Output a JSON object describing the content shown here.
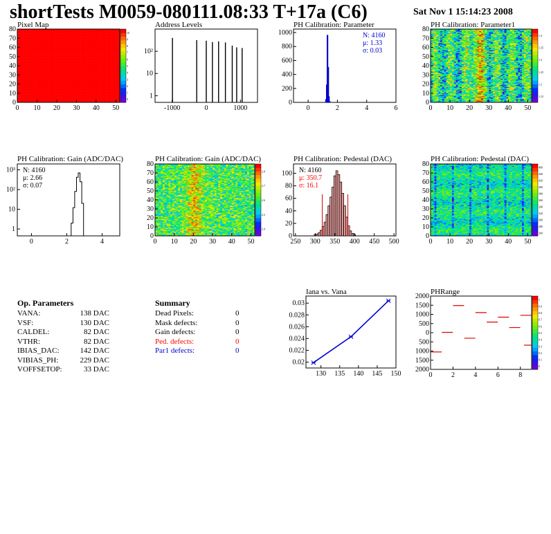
{
  "header": {
    "title": "shortTests M0059-080111.08:33 T+17a (C6)",
    "date": "Sat Nov  1 15:14:23 2008"
  },
  "colors": {
    "red": "#ff0000",
    "blue": "#0000cc",
    "black": "#000000"
  },
  "chart_data": [
    {
      "id": "pixel-map",
      "type": "heatmap",
      "title": "Pixel Map",
      "xticks": [
        "0",
        "10",
        "20",
        "30",
        "40",
        "50"
      ],
      "yticks": [
        "0",
        "10",
        "20",
        "30",
        "40",
        "50",
        "60",
        "70",
        "80"
      ],
      "xlim": [
        0,
        52
      ],
      "ylim": [
        0,
        80
      ],
      "uniform_value": 10,
      "zlim": [
        0,
        10
      ],
      "colorbar_ticks": [
        "0",
        "1",
        "2",
        "3",
        "4",
        "5",
        "6",
        "7",
        "8",
        "9",
        "10"
      ]
    },
    {
      "id": "address-levels",
      "type": "bar",
      "title": "Address Levels",
      "xticks": [
        "-1000",
        "0",
        "1000"
      ],
      "yticks": [
        "1",
        "10",
        "10²"
      ],
      "xlim": [
        -1500,
        1500
      ],
      "log_y": true,
      "peaks_x": [
        -990,
        -280,
        0,
        180,
        360,
        560,
        760,
        890,
        1050
      ],
      "peaks_y": [
        400,
        320,
        300,
        260,
        280,
        250,
        180,
        150,
        140
      ]
    },
    {
      "id": "ph-cal-parameter",
      "type": "bar",
      "title": "PH Calibration: Parameter",
      "xticks": [
        "0",
        "2",
        "4",
        "6"
      ],
      "yticks": [
        "0",
        "200",
        "400",
        "600",
        "800",
        "1000"
      ],
      "xlim": [
        -1,
        6
      ],
      "ylim": [
        0,
        1050
      ],
      "x": [
        1.2,
        1.25,
        1.3,
        1.35,
        1.4,
        1.45
      ],
      "y": [
        40,
        250,
        960,
        500,
        80,
        10
      ],
      "stats": {
        "n": "N: 4160",
        "mu": "μ: 1.33",
        "sigma": "σ: 0.03"
      }
    },
    {
      "id": "ph-cal-parameter1",
      "type": "heatmap",
      "title": "PH Calibration: Parameter1",
      "xticks": [
        "0",
        "10",
        "20",
        "30",
        "40",
        "50"
      ],
      "yticks": [
        "0",
        "10",
        "20",
        "30",
        "40",
        "50",
        "60",
        "70",
        "80"
      ],
      "xlim": [
        0,
        52
      ],
      "ylim": [
        0,
        80
      ],
      "zlim": [
        1.08,
        1.42
      ],
      "colorbar_ticks": [
        "1.15",
        "1.2",
        "1.25",
        "1.3",
        "1.35",
        "1.4"
      ]
    },
    {
      "id": "gain-hist",
      "type": "bar",
      "title": "PH Calibration: Gain (ADC/DAC)",
      "xticks": [
        "0",
        "2",
        "4"
      ],
      "yticks": [
        "1",
        "10",
        "10²",
        "10³"
      ],
      "xlim": [
        -0.8,
        5
      ],
      "log_y": true,
      "x": [
        2.3,
        2.4,
        2.5,
        2.6,
        2.7,
        2.8,
        2.9
      ],
      "y": [
        2,
        12,
        80,
        420,
        700,
        250,
        20
      ],
      "stats": {
        "n": "N: 4160",
        "mu": "μ: 2.66",
        "sigma": "σ: 0.07"
      }
    },
    {
      "id": "gain-map",
      "type": "heatmap",
      "title": "PH Calibration: Gain (ADC/DAC)",
      "xticks": [
        "0",
        "10",
        "20",
        "30",
        "40",
        "50"
      ],
      "yticks": [
        "0",
        "10",
        "20",
        "30",
        "40",
        "50",
        "60",
        "70",
        "80"
      ],
      "xlim": [
        0,
        52
      ],
      "ylim": [
        0,
        80
      ],
      "zlim": [
        2.35,
        2.85
      ],
      "colorbar_ticks": [
        "2.4",
        "2.5",
        "2.6",
        "2.7",
        "2.8"
      ]
    },
    {
      "id": "pedestal-hist",
      "type": "bar",
      "title": "PH Calibration: Pedestal (DAC)",
      "xticks": [
        "250",
        "300",
        "350",
        "400",
        "450",
        "500"
      ],
      "yticks": [
        "0",
        "20",
        "40",
        "60",
        "80",
        "100"
      ],
      "xlim": [
        245,
        505
      ],
      "ylim": [
        0,
        115
      ],
      "x": [
        300,
        305,
        310,
        315,
        320,
        325,
        330,
        335,
        340,
        345,
        350,
        355,
        360,
        365,
        370,
        375,
        380,
        385,
        390,
        395,
        400
      ],
      "y": [
        2,
        3,
        5,
        9,
        15,
        22,
        34,
        48,
        62,
        78,
        96,
        104,
        98,
        86,
        68,
        48,
        30,
        16,
        8,
        4,
        2
      ],
      "stats": {
        "n": "N: 4160",
        "mu": "μ: 350.7",
        "sigma": "σ: 16.1"
      }
    },
    {
      "id": "pedestal-map",
      "type": "heatmap",
      "title": "PH Calibration: Pedestal (DAC)",
      "xticks": [
        "0",
        "10",
        "20",
        "30",
        "40",
        "50"
      ],
      "yticks": [
        "0",
        "10",
        "20",
        "30",
        "40",
        "50",
        "60",
        "70",
        "80"
      ],
      "xlim": [
        0,
        52
      ],
      "ylim": [
        0,
        80
      ],
      "zlim": [
        250,
        470
      ],
      "colorbar_ticks": [
        "260",
        "280",
        "300",
        "320",
        "340",
        "360",
        "380",
        "400",
        "420",
        "440",
        "460"
      ]
    },
    {
      "id": "iana-vana",
      "type": "line",
      "title": "Iana vs. Vana",
      "xticks": [
        "130",
        "135",
        "140",
        "145",
        "150"
      ],
      "yticks": [
        "0.02",
        "0.022",
        "0.024",
        "0.026",
        "0.028",
        "0.03"
      ],
      "xlim": [
        126,
        150
      ],
      "ylim": [
        0.019,
        0.0312
      ],
      "x": [
        128,
        138,
        148
      ],
      "y": [
        0.0199,
        0.0243,
        0.0304
      ]
    },
    {
      "id": "ph-range",
      "type": "scatter",
      "title": "PHRange",
      "xticks": [
        "0",
        "2",
        "4",
        "6",
        "8"
      ],
      "yticks": [
        "-2000",
        "-1500",
        "-1000",
        "-500",
        "0",
        "500",
        "1000",
        "1500",
        "2000"
      ],
      "ytick_labels_shown": [
        "2000",
        "1500",
        "1000",
        "500",
        "0",
        "500",
        "1000",
        "1500",
        "2000"
      ],
      "xlim": [
        0,
        9
      ],
      "ylim": [
        -2000,
        2000
      ],
      "x": [
        0,
        1,
        2,
        3,
        4,
        5,
        6,
        7,
        8
      ],
      "y": [
        -1050,
        20,
        1480,
        -300,
        1100,
        580,
        850,
        280,
        950
      ],
      "extra": [
        {
          "x": 8.5,
          "y": -680
        }
      ],
      "colorbar_ticks": [
        "0",
        "0.1",
        "0.2",
        "0.3",
        "0.4",
        "0.5",
        "0.6",
        "0.7",
        "0.8",
        "0.9",
        "1"
      ]
    }
  ],
  "op_params": {
    "title": "Op. Parameters",
    "rows": [
      {
        "name": "VANA:",
        "value": "138 DAC"
      },
      {
        "name": "VSF:",
        "value": "130 DAC"
      },
      {
        "name": "CALDEL:",
        "value": "82 DAC"
      },
      {
        "name": "VTHR:",
        "value": "82 DAC"
      },
      {
        "name": "IBIAS_DAC:",
        "value": "142 DAC"
      },
      {
        "name": "VIBIAS_PH:",
        "value": "229 DAC"
      },
      {
        "name": "VOFFSETOP:",
        "value": "33 DAC"
      }
    ]
  },
  "summary": {
    "title": "Summary",
    "rows": [
      {
        "name": "Dead Pixels:",
        "value": "0",
        "color": "#000000"
      },
      {
        "name": "Mask defects:",
        "value": "0",
        "color": "#000000"
      },
      {
        "name": "Gain defects:",
        "value": "0",
        "color": "#000000"
      },
      {
        "name": "Ped. defects:",
        "value": "0",
        "color": "#ff0000"
      },
      {
        "name": "Par1 defects:",
        "value": "0",
        "color": "#0000cc"
      }
    ]
  }
}
